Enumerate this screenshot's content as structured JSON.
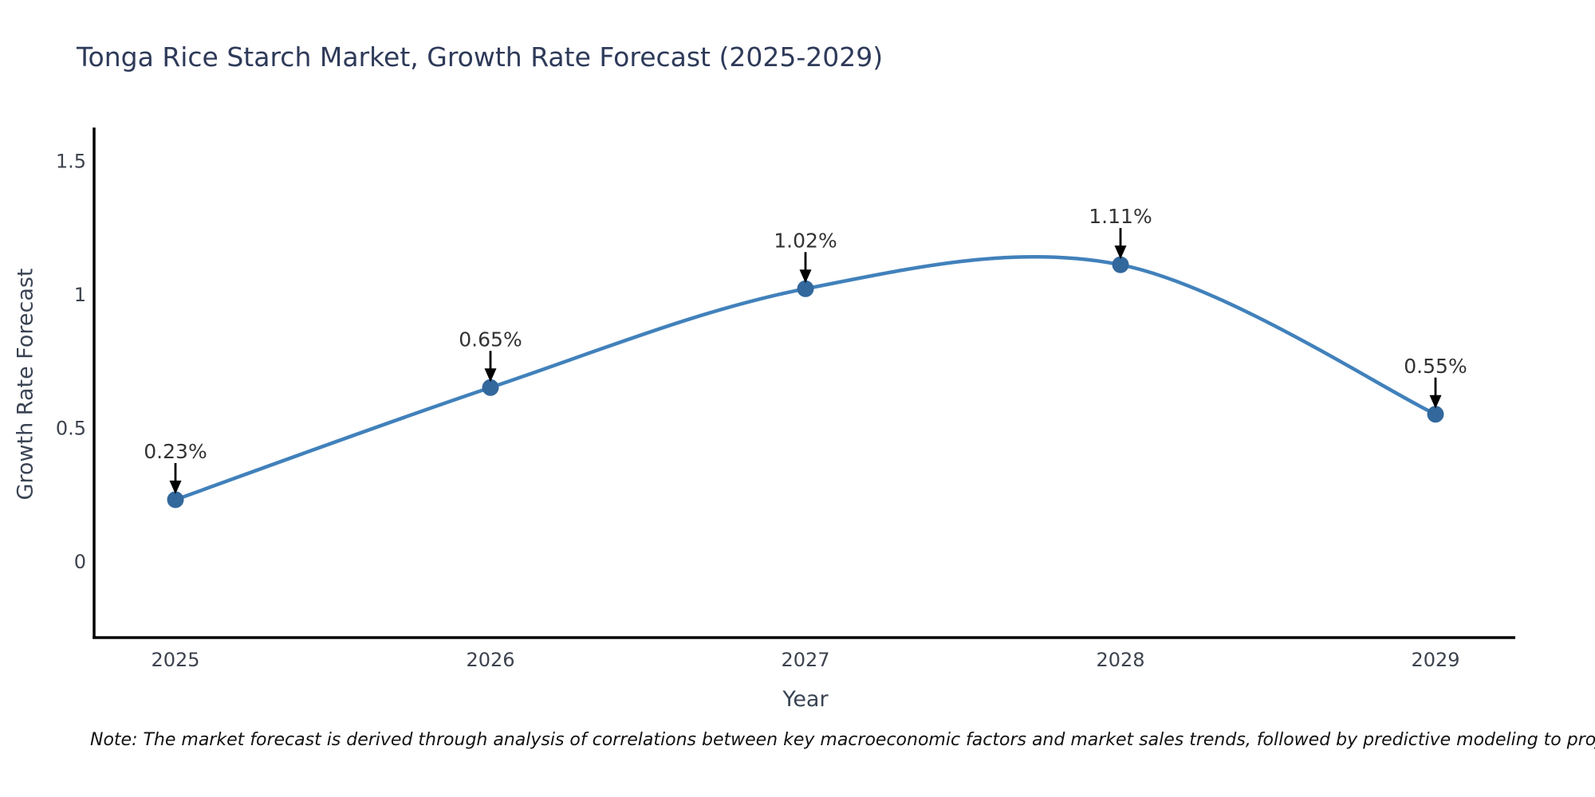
{
  "note": "Note: The market forecast is derived through analysis of correlations between key macroeconomic factors and market sales trends, followed by predictive modeling to project future sales",
  "chart_data": {
    "type": "line",
    "title": "Tonga Rice Starch Market, Growth Rate Forecast (2025-2029)",
    "xlabel": "Year",
    "ylabel": "Growth Rate Forecast",
    "categories": [
      "2025",
      "2026",
      "2027",
      "2028",
      "2029"
    ],
    "values": [
      0.23,
      0.65,
      1.02,
      1.11,
      0.55
    ],
    "point_labels": [
      "0.23%",
      "0.65%",
      "1.02%",
      "1.11%",
      "0.55%"
    ],
    "yticks": [
      0,
      0.5,
      1,
      1.5
    ],
    "ytick_labels": [
      "0",
      "0.5",
      "1",
      "1.5"
    ],
    "ylim": [
      -0.29,
      1.62
    ],
    "grid": false,
    "smooth": true,
    "legend": "none",
    "line_color": "#4181bb",
    "marker_color": "#33689c",
    "arrow_color": "#000000",
    "axis_color": "#000000",
    "tick_label_color": "#3d434e",
    "annotation_label_color": "#333333"
  }
}
